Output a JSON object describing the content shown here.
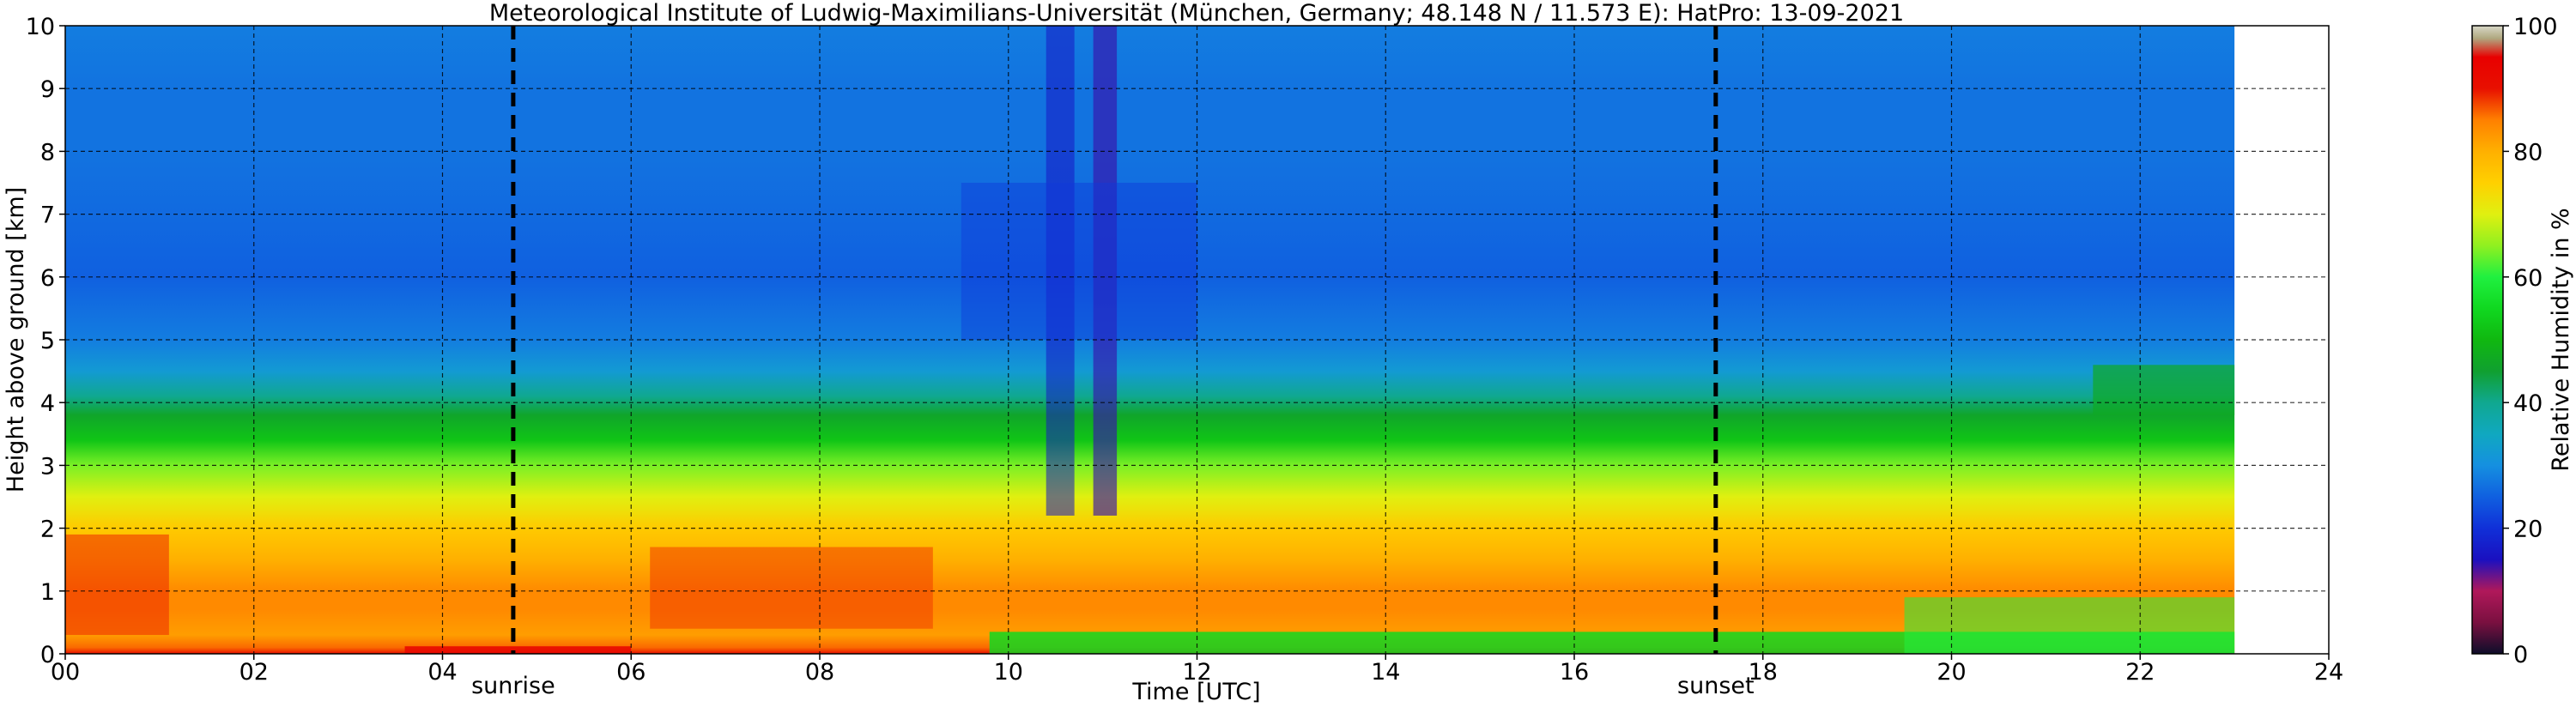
{
  "chart_data": {
    "type": "heatmap",
    "title": "Meteorological Institute of Ludwig-Maximilians-Universität (München, Germany; 48.148 N / 11.573 E):    HatPro: 13-09-2021",
    "xlabel": "Time [UTC]",
    "ylabel": "Height above ground [km]",
    "xlim": [
      0,
      24
    ],
    "ylim": [
      0,
      10
    ],
    "data_end_hour": 23.0,
    "grid": true,
    "x_ticks": [
      {
        "value": 0,
        "label": "00"
      },
      {
        "value": 2,
        "label": "02"
      },
      {
        "value": 4,
        "label": "04"
      },
      {
        "value": 6,
        "label": "06"
      },
      {
        "value": 8,
        "label": "08"
      },
      {
        "value": 10,
        "label": "10"
      },
      {
        "value": 12,
        "label": "12"
      },
      {
        "value": 14,
        "label": "14"
      },
      {
        "value": 16,
        "label": "16"
      },
      {
        "value": 18,
        "label": "18"
      },
      {
        "value": 20,
        "label": "20"
      },
      {
        "value": 22,
        "label": "22"
      },
      {
        "value": 24,
        "label": "24"
      }
    ],
    "y_ticks": [
      {
        "value": 0,
        "label": "0"
      },
      {
        "value": 1,
        "label": "1"
      },
      {
        "value": 2,
        "label": "2"
      },
      {
        "value": 3,
        "label": "3"
      },
      {
        "value": 4,
        "label": "4"
      },
      {
        "value": 5,
        "label": "5"
      },
      {
        "value": 6,
        "label": "6"
      },
      {
        "value": 7,
        "label": "7"
      },
      {
        "value": 8,
        "label": "8"
      },
      {
        "value": 9,
        "label": "9"
      },
      {
        "value": 10,
        "label": "10"
      }
    ],
    "markers": [
      {
        "name": "sunrise",
        "label": "sunrise",
        "x": 4.75
      },
      {
        "name": "sunset",
        "label": "sunset",
        "x": 17.5
      }
    ],
    "colorbar": {
      "label": "Relative Humidity in %",
      "range": [
        0,
        100
      ],
      "ticks": [
        {
          "value": 0,
          "label": "0"
        },
        {
          "value": 20,
          "label": "20"
        },
        {
          "value": 40,
          "label": "40"
        },
        {
          "value": 60,
          "label": "60"
        },
        {
          "value": 80,
          "label": "80"
        },
        {
          "value": 100,
          "label": "100"
        }
      ],
      "stops": [
        {
          "value": 0,
          "color": "#0d0d2a"
        },
        {
          "value": 5,
          "color": "#7a1040"
        },
        {
          "value": 10,
          "color": "#b0185a"
        },
        {
          "value": 15,
          "color": "#1a10c0"
        },
        {
          "value": 20,
          "color": "#1030d8"
        },
        {
          "value": 25,
          "color": "#1060e0"
        },
        {
          "value": 30,
          "color": "#1590e0"
        },
        {
          "value": 35,
          "color": "#10a8c0"
        },
        {
          "value": 40,
          "color": "#10a890"
        },
        {
          "value": 45,
          "color": "#10a030"
        },
        {
          "value": 50,
          "color": "#10b810"
        },
        {
          "value": 55,
          "color": "#10d820"
        },
        {
          "value": 60,
          "color": "#20f040"
        },
        {
          "value": 65,
          "color": "#90f020"
        },
        {
          "value": 70,
          "color": "#e0f010"
        },
        {
          "value": 75,
          "color": "#ffd000"
        },
        {
          "value": 80,
          "color": "#ffb000"
        },
        {
          "value": 85,
          "color": "#ff8000"
        },
        {
          "value": 90,
          "color": "#e81000"
        },
        {
          "value": 95,
          "color": "#e80000"
        },
        {
          "value": 98,
          "color": "#b0a880"
        },
        {
          "value": 100,
          "color": "#d8d8c8"
        }
      ]
    },
    "humidity_profile_km_percent": [
      {
        "height": 0.0,
        "rh": 90
      },
      {
        "height": 0.1,
        "rh": 86
      },
      {
        "height": 0.3,
        "rh": 82
      },
      {
        "height": 0.7,
        "rh": 84
      },
      {
        "height": 1.0,
        "rh": 84
      },
      {
        "height": 1.5,
        "rh": 80
      },
      {
        "height": 2.0,
        "rh": 76
      },
      {
        "height": 2.5,
        "rh": 70
      },
      {
        "height": 3.0,
        "rh": 64
      },
      {
        "height": 3.4,
        "rh": 52
      },
      {
        "height": 3.8,
        "rh": 46
      },
      {
        "height": 4.1,
        "rh": 40
      },
      {
        "height": 4.5,
        "rh": 32
      },
      {
        "height": 5.0,
        "rh": 28
      },
      {
        "height": 6.0,
        "rh": 25
      },
      {
        "height": 7.0,
        "rh": 26
      },
      {
        "height": 8.0,
        "rh": 27
      },
      {
        "height": 9.0,
        "rh": 27
      },
      {
        "height": 10.0,
        "rh": 28
      }
    ]
  }
}
